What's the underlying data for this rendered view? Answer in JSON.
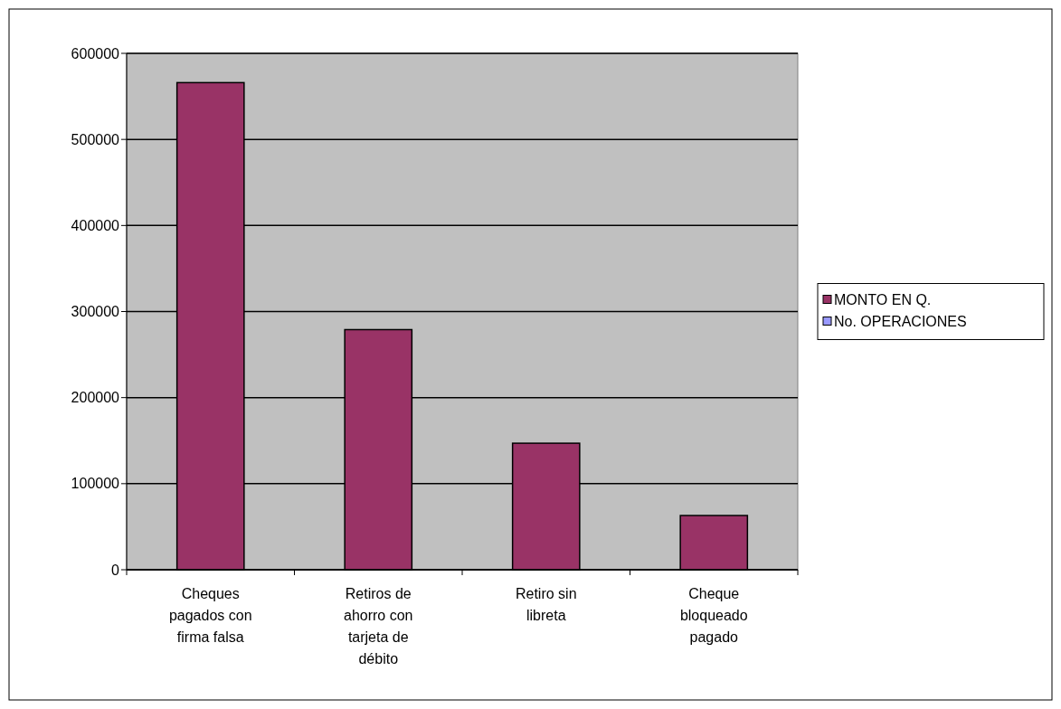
{
  "chart_data": {
    "type": "bar",
    "categories": [
      "Cheques pagados con firma falsa",
      "Retiros de ahorro con tarjeta de débito",
      "Retiro sin libreta",
      "Cheque bloqueado pagado"
    ],
    "series": [
      {
        "name": "MONTO EN Q.",
        "color": "#993366",
        "values": [
          566000,
          279000,
          147000,
          63000
        ]
      },
      {
        "name": "No. OPERACIONES",
        "color": "#9999ff",
        "values": [
          0,
          0,
          0,
          0
        ]
      }
    ],
    "ylim": [
      0,
      600000
    ],
    "yticks": [
      0,
      100000,
      200000,
      300000,
      400000,
      500000,
      600000
    ],
    "grid": "y",
    "legend": "right"
  }
}
